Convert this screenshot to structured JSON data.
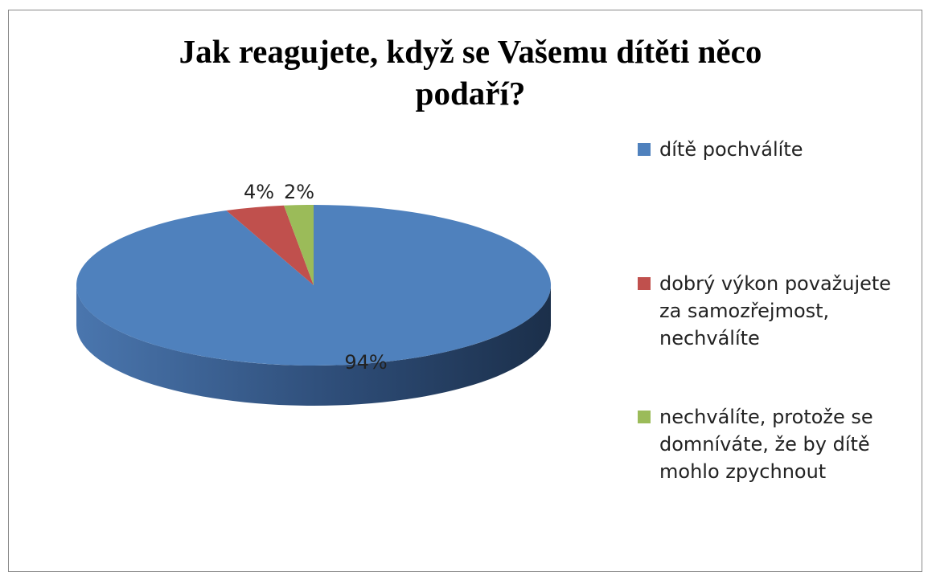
{
  "chart_data": {
    "type": "pie3d",
    "title": "Jak reagujete, když se Vašemu dítěti něco podaří?",
    "categories": [
      "dítě pochválíte",
      "dobrý výkon považujete za samozřejmost, nechválíte",
      "nechválíte, protože se domníváte, že by dítě mohlo zpychnout"
    ],
    "values": [
      94,
      4,
      2
    ],
    "value_labels": [
      "94%",
      "4%",
      "2%"
    ],
    "colors": [
      "#4f81bd",
      "#c0504d",
      "#9bbb59"
    ],
    "legend": "right"
  }
}
